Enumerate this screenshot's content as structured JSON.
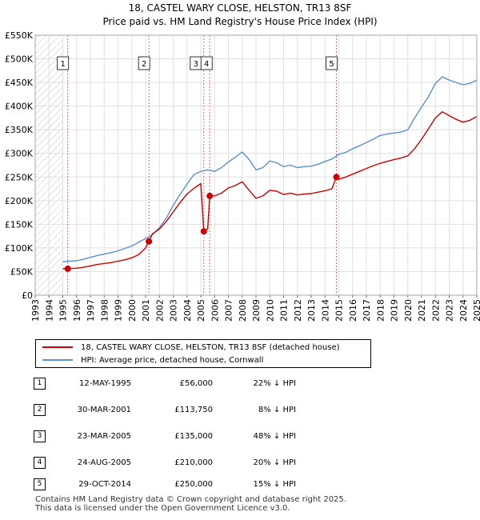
{
  "title_line1": "18, CASTEL WARY CLOSE, HELSTON, TR13 8SF",
  "title_line2": "Price paid vs. HM Land Registry's House Price Index (HPI)",
  "colors": {
    "property": "#cc0000",
    "hpi": "#5b8fcf",
    "marker_line": "#dd6677",
    "grid": "#e0e0e0",
    "hatch": "#c8c8c8"
  },
  "legend": {
    "property": "18, CASTEL WARY CLOSE, HELSTON, TR13 8SF (detached house)",
    "hpi": "HPI: Average price, detached house, Cornwall"
  },
  "sales": [
    {
      "num": "1",
      "date": "12-MAY-1995",
      "price": "£56,000",
      "hpi": "22% ↓ HPI"
    },
    {
      "num": "2",
      "date": "30-MAR-2001",
      "price": "£113,750",
      "hpi": "8% ↓ HPI"
    },
    {
      "num": "3",
      "date": "23-MAR-2005",
      "price": "£135,000",
      "hpi": "48% ↓ HPI"
    },
    {
      "num": "4",
      "date": "24-AUG-2005",
      "price": "£210,000",
      "hpi": "20% ↓ HPI"
    },
    {
      "num": "5",
      "date": "29-OCT-2014",
      "price": "£250,000",
      "hpi": "15% ↓ HPI"
    }
  ],
  "footer_line1": "Contains HM Land Registry data © Crown copyright and database right 2025.",
  "footer_line2": "This data is licensed under the Open Government Licence v3.0.",
  "chart_data": {
    "type": "line",
    "title": "18, CASTEL WARY CLOSE, HELSTON, TR13 8SF — Price paid vs. HM Land Registry's House Price Index (HPI)",
    "xlabel": "",
    "ylabel": "",
    "xlim": [
      1993,
      2025
    ],
    "ylim": [
      0,
      550000
    ],
    "x_ticks": [
      1993,
      1994,
      1995,
      1996,
      1997,
      1998,
      1999,
      2000,
      2001,
      2002,
      2003,
      2004,
      2005,
      2006,
      2007,
      2008,
      2009,
      2010,
      2011,
      2012,
      2013,
      2014,
      2015,
      2016,
      2017,
      2018,
      2019,
      2020,
      2021,
      2022,
      2023,
      2024,
      2025
    ],
    "y_ticks": [
      {
        "value": 0,
        "label": "£0"
      },
      {
        "value": 50000,
        "label": "£50K"
      },
      {
        "value": 100000,
        "label": "£100K"
      },
      {
        "value": 150000,
        "label": "£150K"
      },
      {
        "value": 200000,
        "label": "£200K"
      },
      {
        "value": 250000,
        "label": "£250K"
      },
      {
        "value": 300000,
        "label": "£300K"
      },
      {
        "value": 350000,
        "label": "£350K"
      },
      {
        "value": 400000,
        "label": "£400K"
      },
      {
        "value": 450000,
        "label": "£450K"
      },
      {
        "value": 500000,
        "label": "£500K"
      },
      {
        "value": 550000,
        "label": "£550K"
      }
    ],
    "grid": true,
    "data_start_year": 1995,
    "series": [
      {
        "name": "HPI: Average price, detached house, Cornwall",
        "x": [
          1995.0,
          1995.5,
          1996.0,
          1996.5,
          1997.0,
          1997.5,
          1998.0,
          1998.5,
          1999.0,
          1999.5,
          2000.0,
          2000.5,
          2001.0,
          2001.5,
          2002.0,
          2002.5,
          2003.0,
          2003.5,
          2004.0,
          2004.5,
          2005.0,
          2005.5,
          2006.0,
          2006.5,
          2007.0,
          2007.5,
          2008.0,
          2008.5,
          2009.0,
          2009.5,
          2010.0,
          2010.5,
          2011.0,
          2011.5,
          2012.0,
          2012.5,
          2013.0,
          2013.5,
          2014.0,
          2014.5,
          2015.0,
          2015.5,
          2016.0,
          2016.5,
          2017.0,
          2017.5,
          2018.0,
          2018.5,
          2019.0,
          2019.5,
          2020.0,
          2020.5,
          2021.0,
          2021.5,
          2022.0,
          2022.5,
          2023.0,
          2023.5,
          2024.0,
          2024.5,
          2025.0
        ],
        "y": [
          71000,
          72000,
          73000,
          76000,
          80000,
          84000,
          87000,
          90000,
          94000,
          99000,
          104000,
          112000,
          120000,
          128000,
          143000,
          163000,
          190000,
          213000,
          235000,
          255000,
          262000,
          265000,
          262000,
          270000,
          282000,
          292000,
          303000,
          287000,
          265000,
          270000,
          284000,
          280000,
          272000,
          275000,
          270000,
          272000,
          273000,
          277000,
          283000,
          288000,
          298000,
          302000,
          310000,
          316000,
          323000,
          330000,
          338000,
          341000,
          343000,
          345000,
          350000,
          375000,
          398000,
          420000,
          448000,
          462000,
          455000,
          450000,
          445000,
          448000,
          455000
        ]
      },
      {
        "name": "18, CASTEL WARY CLOSE, HELSTON, TR13 8SF (detached house)",
        "x": [
          1995.0,
          1995.36,
          1995.5,
          1996.0,
          1996.5,
          1997.0,
          1997.5,
          1998.0,
          1998.5,
          1999.0,
          1999.5,
          2000.0,
          2000.5,
          2001.0,
          2001.24,
          2001.5,
          2002.0,
          2002.5,
          2003.0,
          2003.5,
          2004.0,
          2004.5,
          2005.0,
          2005.22,
          2005.5,
          2005.65,
          2006.0,
          2006.5,
          2007.0,
          2007.5,
          2008.0,
          2008.5,
          2009.0,
          2009.5,
          2010.0,
          2010.5,
          2011.0,
          2011.5,
          2012.0,
          2012.5,
          2013.0,
          2013.5,
          2014.0,
          2014.5,
          2014.83,
          2015.0,
          2015.5,
          2016.0,
          2016.5,
          2017.0,
          2017.5,
          2018.0,
          2018.5,
          2019.0,
          2019.5,
          2020.0,
          2020.5,
          2021.0,
          2021.5,
          2022.0,
          2022.5,
          2023.0,
          2023.5,
          2024.0,
          2024.5,
          2025.0
        ],
        "y": [
          56000,
          56000,
          56500,
          57000,
          59000,
          62000,
          65000,
          67000,
          69000,
          72000,
          75000,
          79000,
          86000,
          100000,
          113750,
          130000,
          140000,
          156000,
          176000,
          196000,
          214000,
          226000,
          236000,
          135000,
          140000,
          210000,
          210000,
          216000,
          227000,
          232000,
          240000,
          222000,
          205000,
          210000,
          222000,
          220000,
          213000,
          216000,
          212000,
          214000,
          215000,
          218000,
          221000,
          225000,
          250000,
          245000,
          250000,
          256000,
          262000,
          268000,
          274000,
          279000,
          283000,
          287000,
          290000,
          295000,
          310000,
          330000,
          352000,
          375000,
          388000,
          380000,
          372000,
          366000,
          370000,
          378000
        ]
      }
    ],
    "markers": [
      {
        "num": "1",
        "x": 1995.36,
        "y": 56000
      },
      {
        "num": "2",
        "x": 2001.24,
        "y": 113750
      },
      {
        "num": "3",
        "x": 2005.22,
        "y": 135000
      },
      {
        "num": "4",
        "x": 2005.65,
        "y": 210000
      },
      {
        "num": "5",
        "x": 2014.83,
        "y": 250000
      }
    ]
  }
}
